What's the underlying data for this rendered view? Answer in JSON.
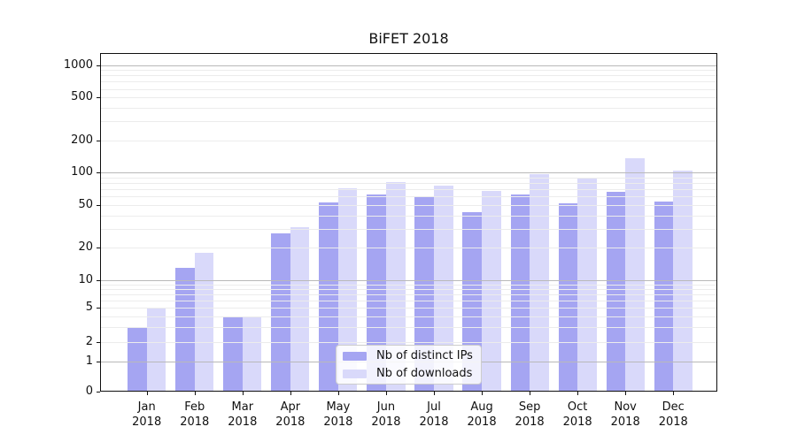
{
  "title": "BiFET 2018",
  "legend": {
    "items": [
      {
        "label": "Nb of distinct IPs"
      },
      {
        "label": "Nb of downloads"
      }
    ]
  },
  "chart_data": {
    "type": "bar",
    "title": "BiFET 2018",
    "categories": [
      "Jan 2018",
      "Feb 2018",
      "Mar 2018",
      "Apr 2018",
      "May 2018",
      "Jun 2018",
      "Jul 2018",
      "Aug 2018",
      "Sep 2018",
      "Oct 2018",
      "Nov 2018",
      "Dec 2018"
    ],
    "series": [
      {
        "name": "Nb of distinct IPs",
        "color": "#a5a5f2",
        "values": [
          3,
          13,
          4,
          27,
          53,
          63,
          59,
          43,
          63,
          52,
          66,
          54
        ]
      },
      {
        "name": "Nb of downloads",
        "color": "#d9d9fa",
        "values": [
          5,
          18,
          4,
          31,
          72,
          82,
          76,
          67,
          97,
          88,
          136,
          104
        ]
      }
    ],
    "xlabel": "",
    "ylabel": "",
    "yscale": "symlog",
    "y_ticks": [
      0,
      1,
      2,
      5,
      10,
      20,
      50,
      100,
      200,
      500,
      1000
    ],
    "ylim": [
      0,
      1000
    ],
    "grid": true,
    "grid_major_at": [
      1,
      10,
      100,
      1000
    ],
    "legend_position": "lower center"
  }
}
